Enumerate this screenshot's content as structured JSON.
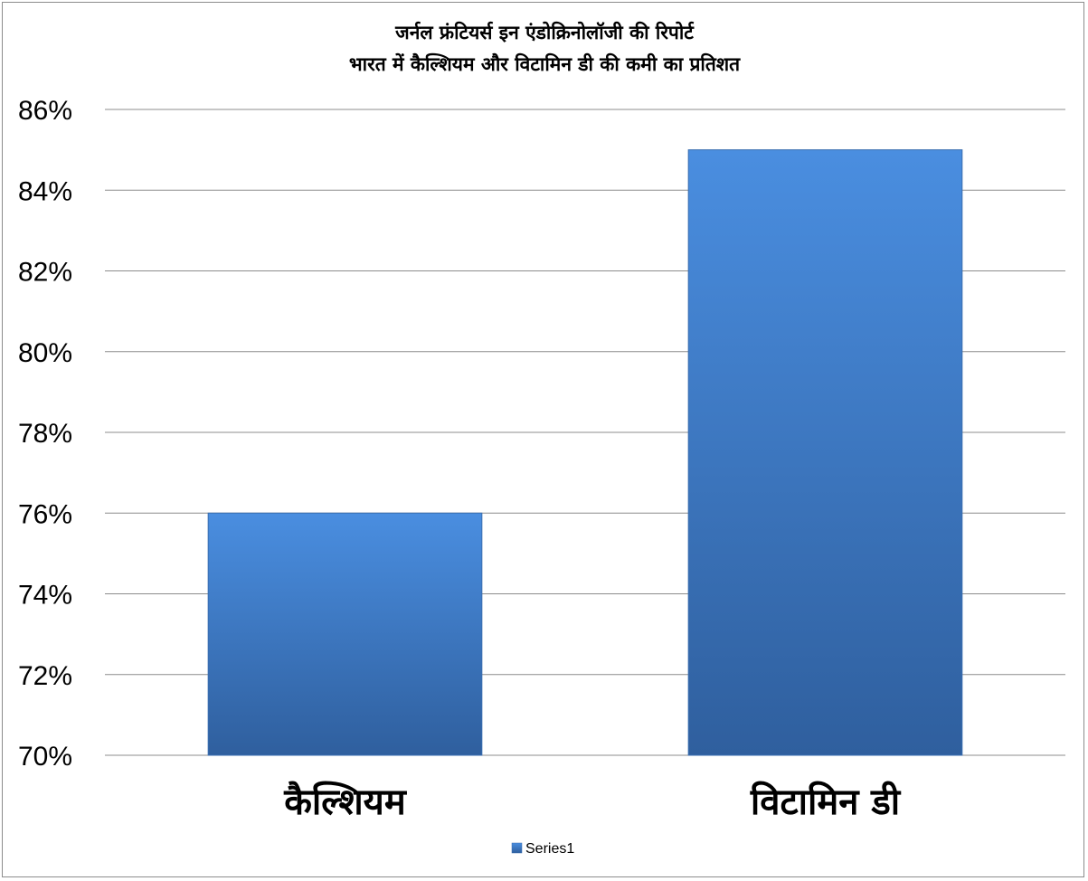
{
  "chart_data": {
    "type": "bar",
    "title_lines": [
      "जर्नल फ्रंटियर्स इन एंडोक्रिनोलॉजी की रिपोर्ट",
      "भारत में कैल्शियम और विटामिन डी की कमी का प्रतिशत"
    ],
    "categories": [
      "कैल्शियम",
      "विटामिन डी"
    ],
    "series": [
      {
        "name": "Series1",
        "values": [
          0.76,
          0.85
        ]
      }
    ],
    "ylim": [
      0.7,
      0.86
    ],
    "yticks": [
      "70%",
      "72%",
      "74%",
      "76%",
      "78%",
      "80%",
      "82%",
      "84%",
      "86%"
    ],
    "grid": true,
    "legend_position": "bottom",
    "colors": {
      "bar_top": "#4a8ee0",
      "bar_bottom": "#2f5f9e",
      "bar_edge": "#3a6eb0",
      "grid": "#8c8c8c"
    }
  }
}
